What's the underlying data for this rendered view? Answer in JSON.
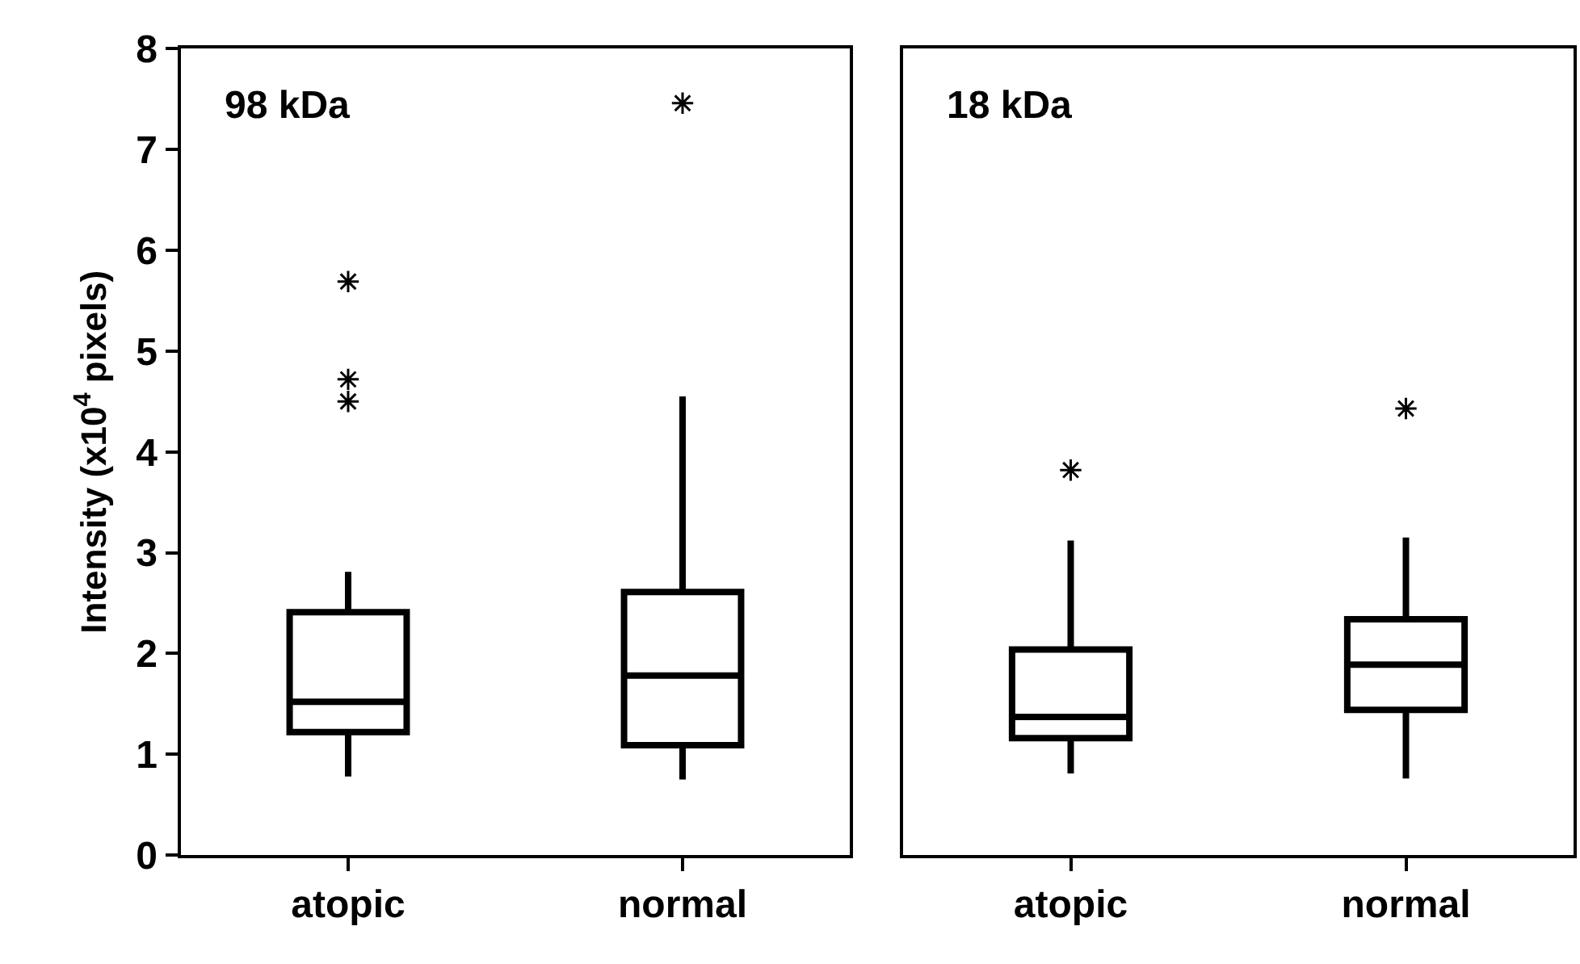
{
  "chart_data": [
    {
      "type": "box",
      "title": "98 kDa",
      "ylabel": "Intensity (x10$^{4}$ pixels)",
      "categories": [
        "atopic",
        "normal"
      ],
      "ylim": [
        0,
        8
      ],
      "yticks": [
        0,
        1,
        2,
        3,
        4,
        5,
        6,
        7,
        8
      ],
      "series": [
        {
          "color": "#000000",
          "boxes": [
            {
              "low": 0.78,
              "q1": 1.22,
              "median": 1.52,
              "q3": 2.41,
              "high": 2.81,
              "outliers": [
                4.5,
                4.72,
                5.69
              ]
            },
            {
              "low": 0.75,
              "q1": 1.09,
              "median": 1.78,
              "q3": 2.61,
              "high": 4.55,
              "outliers": [
                7.46
              ]
            }
          ]
        }
      ]
    },
    {
      "type": "box",
      "title": "18 kDa",
      "categories": [
        "atopic",
        "normal"
      ],
      "ylim": [
        0,
        8
      ],
      "tick_labels": "x",
      "series": [
        {
          "color": "#000000",
          "boxes": [
            {
              "low": 0.81,
              "q1": 1.16,
              "median": 1.37,
              "q3": 2.04,
              "high": 3.12,
              "outliers": [
                3.82
              ]
            },
            {
              "low": 0.76,
              "q1": 1.44,
              "median": 1.89,
              "q3": 2.34,
              "high": 3.15,
              "outliers": [
                4.43
              ]
            }
          ]
        }
      ]
    }
  ]
}
